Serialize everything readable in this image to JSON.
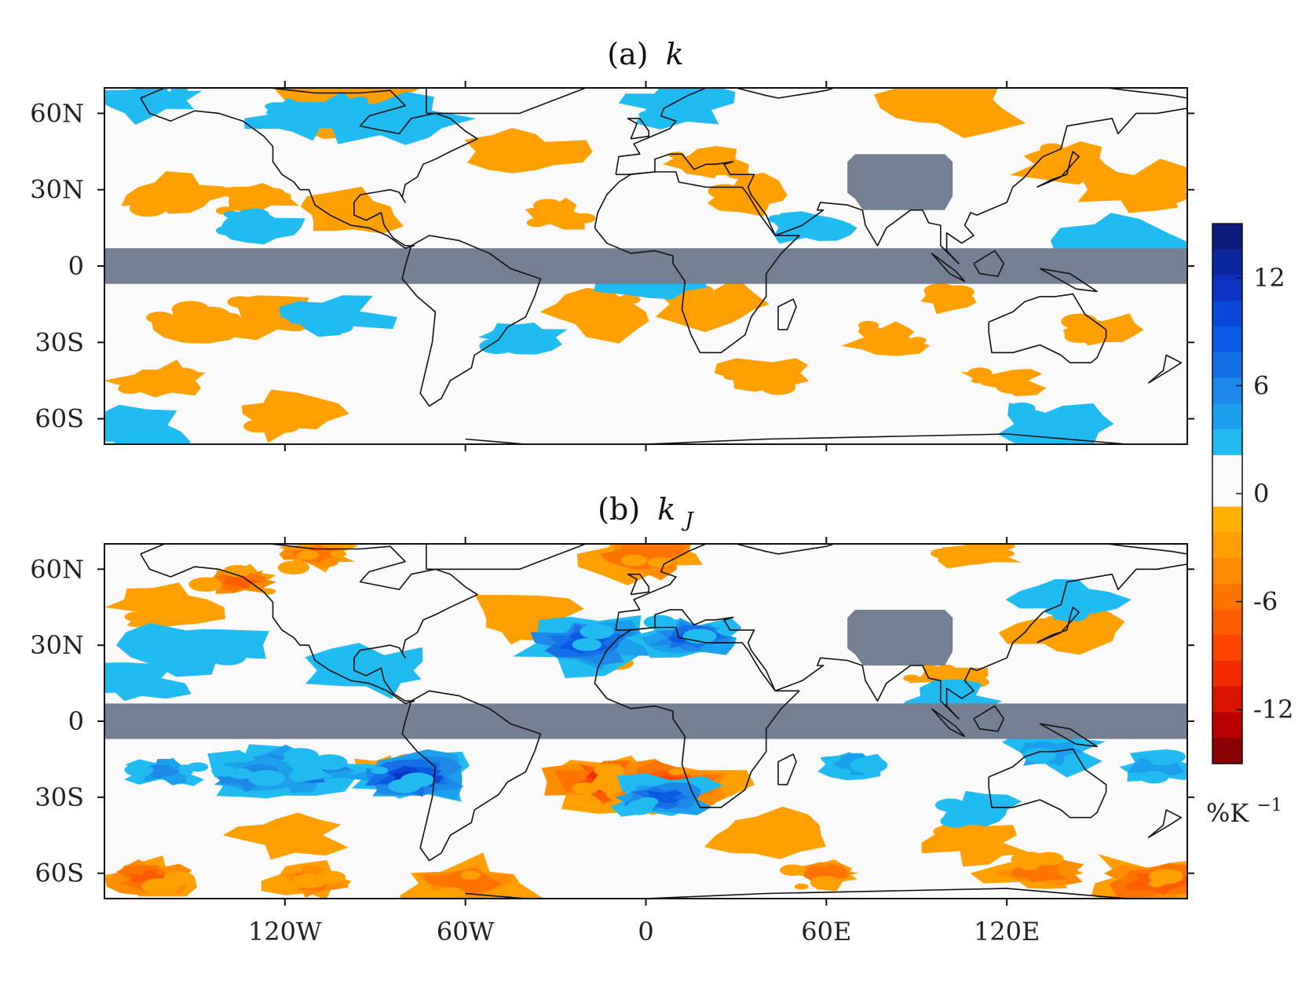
{
  "chart_data": [
    {
      "type": "heatmap",
      "title_prefix": "(a)",
      "title_var": "k",
      "title_sub": "",
      "xlim": [
        -180,
        180
      ],
      "ylim": [
        -70,
        70
      ],
      "xticks": [
        {
          "value": -120,
          "label": "120W"
        },
        {
          "value": -60,
          "label": "60W"
        },
        {
          "value": 0,
          "label": "0"
        },
        {
          "value": 60,
          "label": "60E"
        },
        {
          "value": 120,
          "label": "120E"
        }
      ],
      "yticks": [
        {
          "value": 60,
          "label": "60N"
        },
        {
          "value": 30,
          "label": "30N"
        },
        {
          "value": 0,
          "label": "0"
        },
        {
          "value": -30,
          "label": "30S"
        },
        {
          "value": -60,
          "label": "60S"
        }
      ],
      "masked_regions": [
        {
          "name": "tropics",
          "lat": [
            -7,
            7
          ],
          "lon": [
            -180,
            180
          ]
        },
        {
          "name": "tibet",
          "lat": [
            22,
            44
          ],
          "lon": [
            67,
            102
          ]
        }
      ],
      "anomaly_blobs": [
        {
          "lon": -155,
          "lat": 28,
          "value": -3
        },
        {
          "lon": -130,
          "lat": 27,
          "value": -3
        },
        {
          "lon": -100,
          "lat": 20,
          "value": -3
        },
        {
          "lon": -150,
          "lat": -22,
          "value": -3
        },
        {
          "lon": -125,
          "lat": -20,
          "value": -3
        },
        {
          "lon": -160,
          "lat": -45,
          "value": -3
        },
        {
          "lon": -120,
          "lat": -58,
          "value": -3
        },
        {
          "lon": -40,
          "lat": 45,
          "value": -3
        },
        {
          "lon": -30,
          "lat": 20,
          "value": -3
        },
        {
          "lon": -15,
          "lat": -18,
          "value": -3
        },
        {
          "lon": 20,
          "lat": 40,
          "value": -3
        },
        {
          "lon": 35,
          "lat": 28,
          "value": -3
        },
        {
          "lon": 25,
          "lat": -15,
          "value": -3
        },
        {
          "lon": 40,
          "lat": -42,
          "value": -3
        },
        {
          "lon": 80,
          "lat": -28,
          "value": -3
        },
        {
          "lon": 100,
          "lat": -12,
          "value": -3
        },
        {
          "lon": 140,
          "lat": 40,
          "value": -3
        },
        {
          "lon": 165,
          "lat": 30,
          "value": -3
        },
        {
          "lon": 150,
          "lat": -25,
          "value": -3
        },
        {
          "lon": 120,
          "lat": -45,
          "value": -3
        },
        {
          "lon": 100,
          "lat": 62,
          "value": -3
        },
        {
          "lon": -100,
          "lat": 64,
          "value": -3
        },
        {
          "lon": -130,
          "lat": 15,
          "value": 3
        },
        {
          "lon": -85,
          "lat": 58,
          "value": 3
        },
        {
          "lon": -105,
          "lat": 60,
          "value": 3
        },
        {
          "lon": -115,
          "lat": 58,
          "value": 3
        },
        {
          "lon": -165,
          "lat": 65,
          "value": 3
        },
        {
          "lon": -170,
          "lat": -65,
          "value": 3
        },
        {
          "lon": -40,
          "lat": -28,
          "value": 3
        },
        {
          "lon": 5,
          "lat": -5,
          "value": 3
        },
        {
          "lon": 55,
          "lat": 15,
          "value": 3
        },
        {
          "lon": 10,
          "lat": 64,
          "value": 3
        },
        {
          "lon": -105,
          "lat": -20,
          "value": 3
        },
        {
          "lon": 160,
          "lat": 10,
          "value": 3
        },
        {
          "lon": 135,
          "lat": -62,
          "value": 3
        }
      ]
    },
    {
      "type": "heatmap",
      "title_prefix": "(b)",
      "title_var": "k",
      "title_sub": "J",
      "xlim": [
        -180,
        180
      ],
      "ylim": [
        -70,
        70
      ],
      "xticks": [
        {
          "value": -120,
          "label": "120W"
        },
        {
          "value": -60,
          "label": "60W"
        },
        {
          "value": 0,
          "label": "0"
        },
        {
          "value": 60,
          "label": "60E"
        },
        {
          "value": 120,
          "label": "120E"
        }
      ],
      "yticks": [
        {
          "value": 60,
          "label": "60N"
        },
        {
          "value": 30,
          "label": "30N"
        },
        {
          "value": 0,
          "label": "0"
        },
        {
          "value": -30,
          "label": "30S"
        },
        {
          "value": -60,
          "label": "60S"
        }
      ],
      "masked_regions": [
        {
          "name": "tropics",
          "lat": [
            -7,
            7
          ],
          "lon": [
            -180,
            180
          ]
        },
        {
          "name": "tibet",
          "lat": [
            22,
            44
          ],
          "lon": [
            67,
            102
          ]
        }
      ],
      "anomaly_blobs": [
        {
          "lon": -135,
          "lat": 55,
          "value": -8
        },
        {
          "lon": -110,
          "lat": 66,
          "value": -6
        },
        {
          "lon": 0,
          "lat": 66,
          "value": -6
        },
        {
          "lon": 110,
          "lat": 66,
          "value": -4
        },
        {
          "lon": -160,
          "lat": 45,
          "value": -3
        },
        {
          "lon": -40,
          "lat": 40,
          "value": -3
        },
        {
          "lon": -20,
          "lat": 29,
          "value": -8
        },
        {
          "lon": 100,
          "lat": 18,
          "value": -3
        },
        {
          "lon": 140,
          "lat": 35,
          "value": -3
        },
        {
          "lon": -88,
          "lat": -20,
          "value": -13
        },
        {
          "lon": -10,
          "lat": -24,
          "value": -13
        },
        {
          "lon": 8,
          "lat": -25,
          "value": -10
        },
        {
          "lon": -165,
          "lat": -62,
          "value": -8
        },
        {
          "lon": -110,
          "lat": -63,
          "value": -7
        },
        {
          "lon": -60,
          "lat": -64,
          "value": -6
        },
        {
          "lon": 60,
          "lat": -60,
          "value": -6
        },
        {
          "lon": 130,
          "lat": -60,
          "value": -6
        },
        {
          "lon": 170,
          "lat": -64,
          "value": -8
        },
        {
          "lon": -120,
          "lat": -45,
          "value": -3
        },
        {
          "lon": 40,
          "lat": -45,
          "value": -3
        },
        {
          "lon": 110,
          "lat": -48,
          "value": -3
        },
        {
          "lon": -160,
          "lat": -20,
          "value": 7
        },
        {
          "lon": -115,
          "lat": -19,
          "value": 10
        },
        {
          "lon": -130,
          "lat": -22,
          "value": 6
        },
        {
          "lon": -78,
          "lat": -22,
          "value": 12
        },
        {
          "lon": -20,
          "lat": 31,
          "value": 9
        },
        {
          "lon": 15,
          "lat": 33,
          "value": 9
        },
        {
          "lon": 5,
          "lat": -30,
          "value": 10
        },
        {
          "lon": 70,
          "lat": -17,
          "value": 5
        },
        {
          "lon": 100,
          "lat": 8,
          "value": 4
        },
        {
          "lon": 135,
          "lat": -12,
          "value": 5
        },
        {
          "lon": 170,
          "lat": -18,
          "value": 5
        },
        {
          "lon": 140,
          "lat": 48,
          "value": 4
        },
        {
          "lon": 110,
          "lat": -35,
          "value": 4
        },
        {
          "lon": -150,
          "lat": 30,
          "value": 3
        },
        {
          "lon": -170,
          "lat": 15,
          "value": 3
        },
        {
          "lon": -90,
          "lat": 20,
          "value": 3
        }
      ]
    }
  ],
  "colorbar": {
    "ticks": [
      {
        "value": 12,
        "label": "12"
      },
      {
        "value": 6,
        "label": "6"
      },
      {
        "value": 0,
        "label": "0"
      },
      {
        "value": -6,
        "label": "-6"
      },
      {
        "value": -12,
        "label": "-12"
      }
    ],
    "range": [
      -15,
      15
    ],
    "unit_base": "%K",
    "unit_exp": "−1",
    "colors_top_to_bottom": [
      "#0a1b7a",
      "#0b27a0",
      "#0a33c4",
      "#0a46d8",
      "#0b5ae6",
      "#1670e8",
      "#1c88ea",
      "#1aa0ec",
      "#20bbf1",
      "#fafafa",
      "#fafafa",
      "#ffb000",
      "#ffa000",
      "#ff8c00",
      "#ff7400",
      "#ff5d00",
      "#ff4400",
      "#f22b00",
      "#db1400",
      "#b80000",
      "#8b0000"
    ]
  },
  "colors": {
    "mask": "#747f93",
    "white": "#fafafa",
    "orange": "#ffae00",
    "coast": "#111111"
  }
}
